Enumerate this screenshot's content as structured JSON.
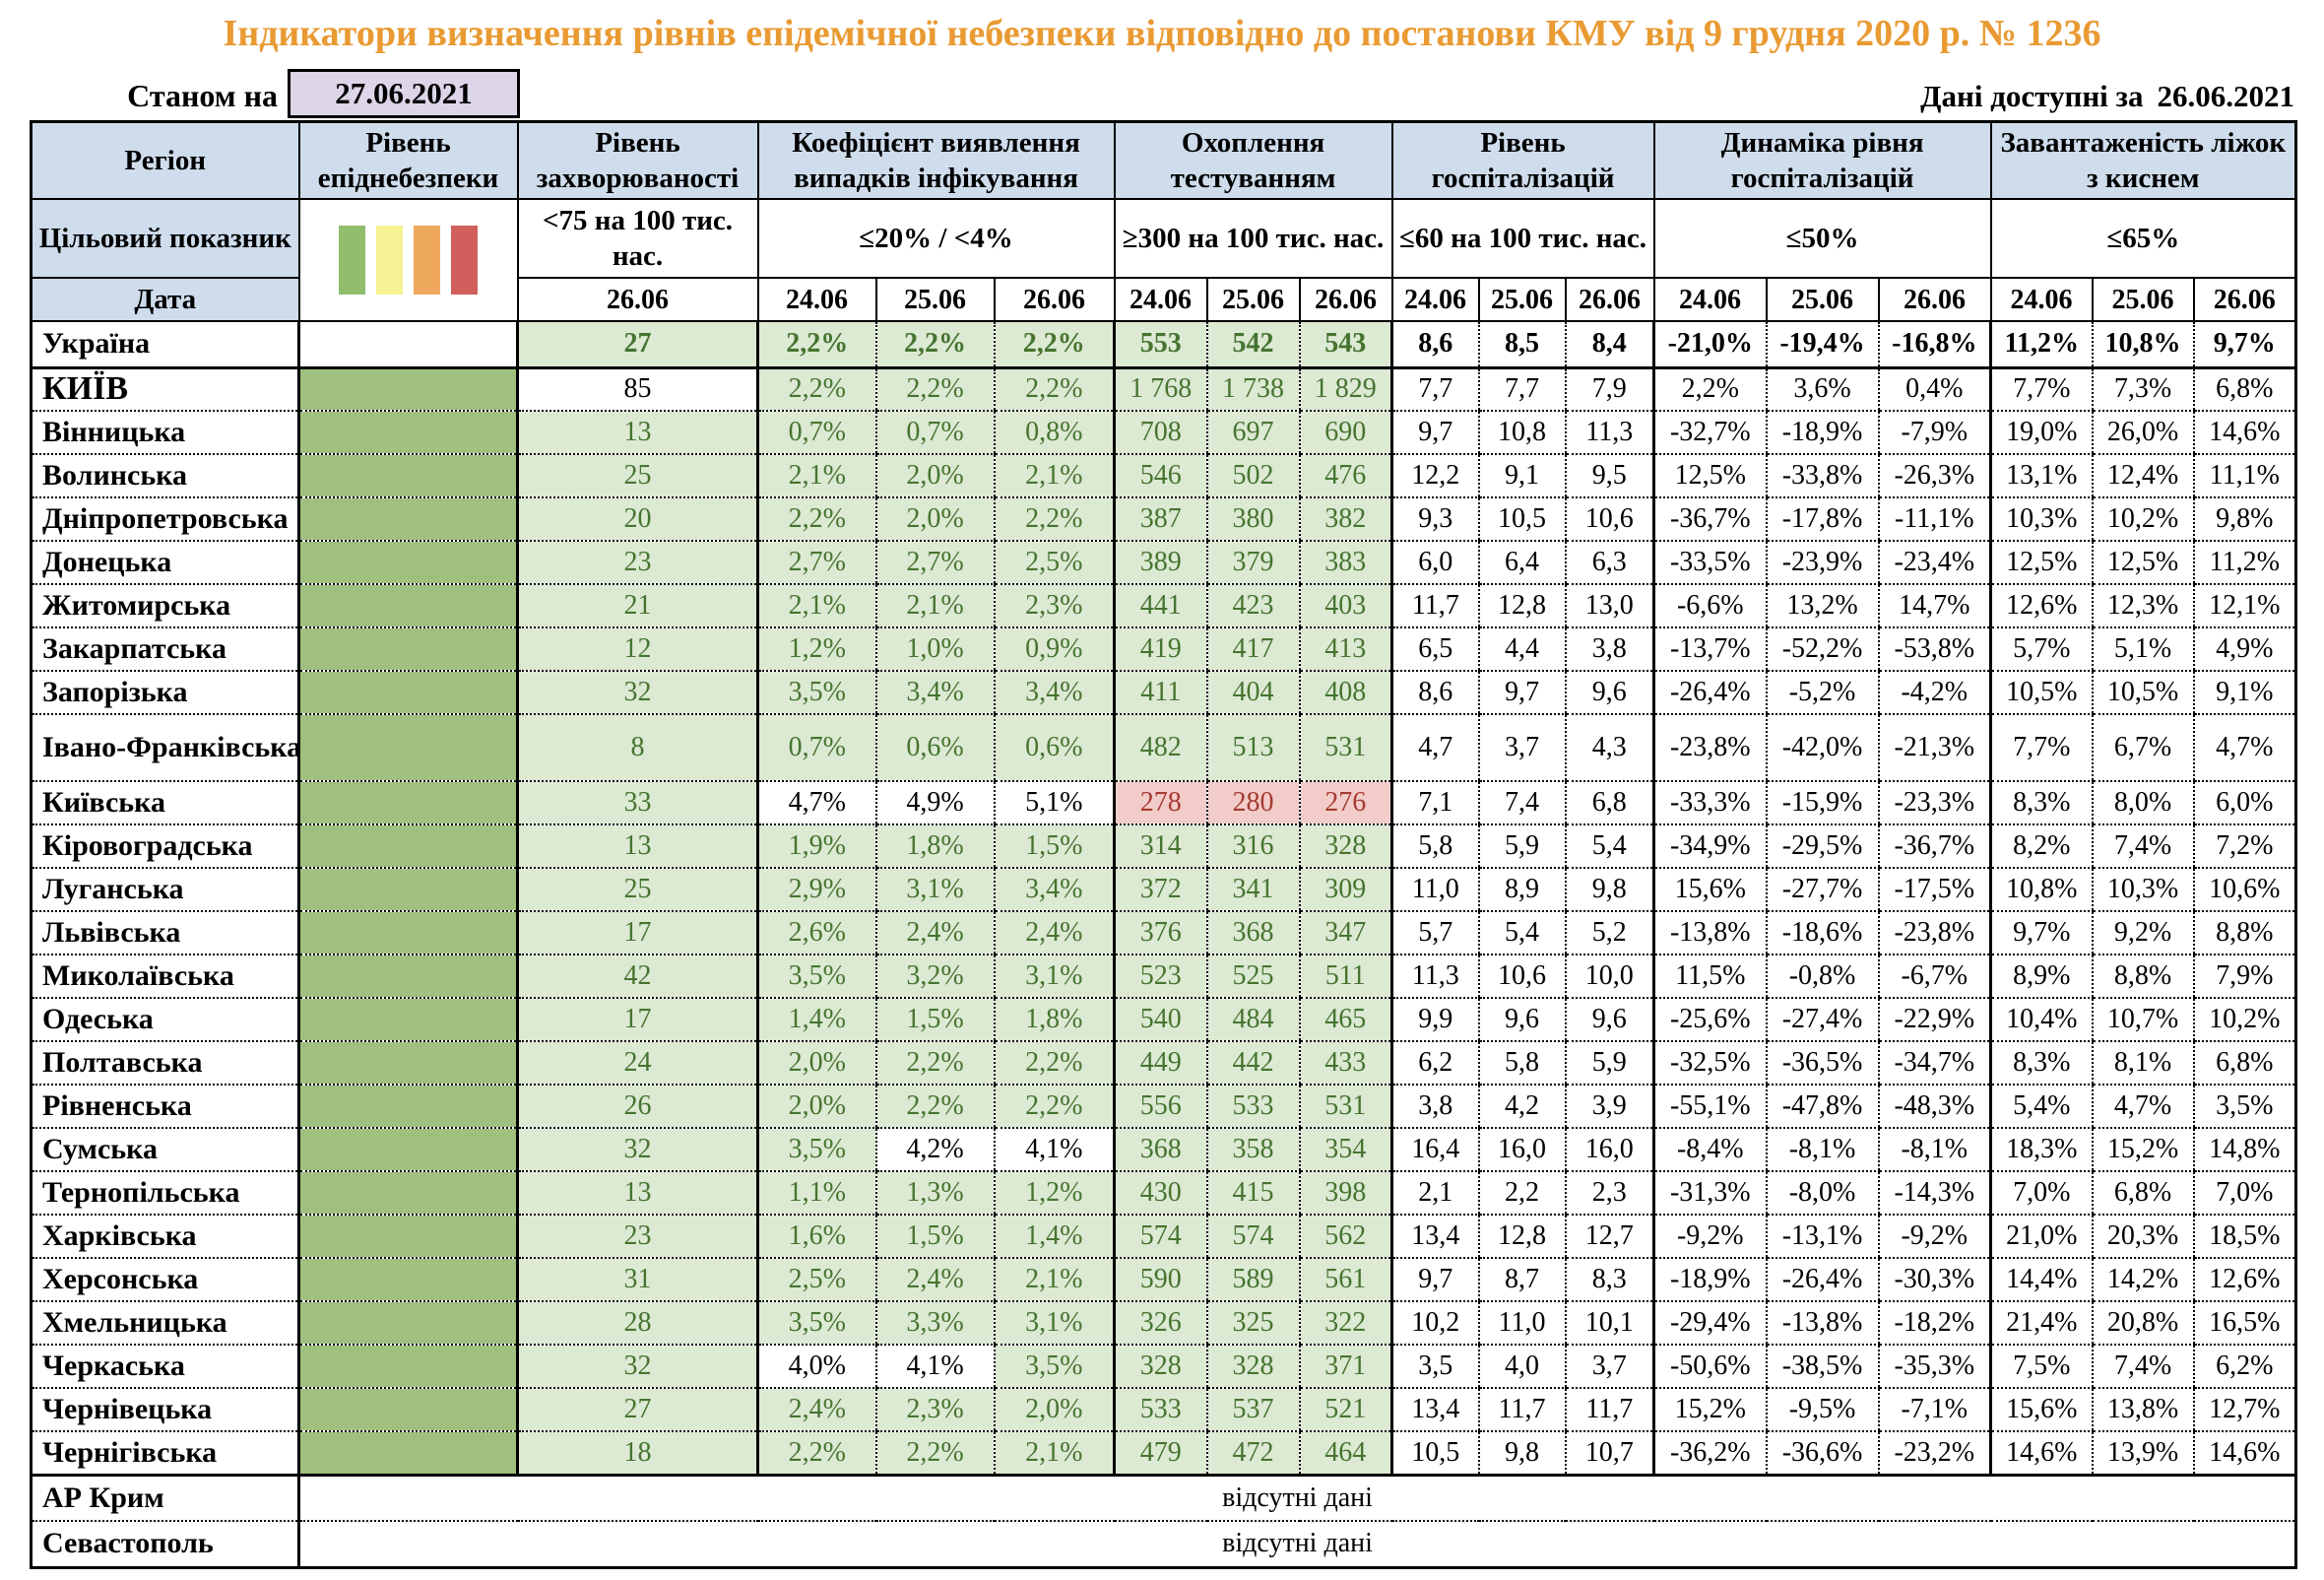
{
  "title": "Індикатори визначення рівнів епідемічної небезпеки відповідно до постанови КМУ від 9 грудня 2020 р. № 1236",
  "as_of": {
    "label": "Станом на",
    "date": "27.06.2021"
  },
  "available": {
    "label": "Дані доступні за",
    "date": "26.06.2021"
  },
  "legend_colors": [
    "#90BE6D",
    "#F6F293",
    "#EFA95F",
    "#D15F5B"
  ],
  "header": {
    "region": "Регіон",
    "target_label": "Цільовий показник",
    "date_label": "Дата",
    "groups": [
      {
        "title": "Рівень епіднебезпеки",
        "target": "",
        "dates": []
      },
      {
        "title": "Рівень захворюваності",
        "target": "<75 на 100 тис. нас.",
        "dates": [
          "26.06"
        ]
      },
      {
        "title": "Коефіцієнт виявлення випадків інфікування",
        "target": "≤20% / <4%",
        "dates": [
          "24.06",
          "25.06",
          "26.06"
        ]
      },
      {
        "title": "Охоплення тестуванням",
        "target": "≥300 на 100 тис. нас.",
        "dates": [
          "24.06",
          "25.06",
          "26.06"
        ]
      },
      {
        "title": "Рівень госпіталізацій",
        "target": "≤60 на 100 тис. нас.",
        "dates": [
          "24.06",
          "25.06",
          "26.06"
        ]
      },
      {
        "title": "Динаміка рівня госпіталізацій",
        "target": "≤50%",
        "dates": [
          "24.06",
          "25.06",
          "26.06"
        ]
      },
      {
        "title": "Завантаженість ліжок з киснем",
        "target": "≤65%",
        "dates": [
          "24.06",
          "25.06",
          "26.06"
        ]
      }
    ]
  },
  "rows": [
    {
      "name": "Україна",
      "total": true,
      "danger": "",
      "zah": [
        "27",
        "g"
      ],
      "koef": [
        [
          "2,2%",
          "g"
        ],
        [
          "2,2%",
          "g"
        ],
        [
          "2,2%",
          "g"
        ]
      ],
      "test": [
        [
          "553",
          "g"
        ],
        [
          "542",
          "g"
        ],
        [
          "543",
          "g"
        ]
      ],
      "gosp": [
        "8,6",
        "8,5",
        "8,4"
      ],
      "dyn": [
        "-21,0%",
        "-19,4%",
        "-16,8%"
      ],
      "lizhka": [
        "11,2%",
        "10,8%",
        "9,7%"
      ]
    },
    {
      "name": "КИЇВ",
      "caps": true,
      "danger": "g",
      "zah": [
        "85",
        "w"
      ],
      "koef": [
        [
          "2,2%",
          "g"
        ],
        [
          "2,2%",
          "g"
        ],
        [
          "2,2%",
          "g"
        ]
      ],
      "test": [
        [
          "1 768",
          "g"
        ],
        [
          "1 738",
          "g"
        ],
        [
          "1 829",
          "g"
        ]
      ],
      "gosp": [
        "7,7",
        "7,7",
        "7,9"
      ],
      "dyn": [
        "2,2%",
        "3,6%",
        "0,4%"
      ],
      "lizhka": [
        "7,7%",
        "7,3%",
        "6,8%"
      ]
    },
    {
      "name": "Вінницька",
      "danger": "g",
      "zah": [
        "13",
        "g"
      ],
      "koef": [
        [
          "0,7%",
          "g"
        ],
        [
          "0,7%",
          "g"
        ],
        [
          "0,8%",
          "g"
        ]
      ],
      "test": [
        [
          "708",
          "g"
        ],
        [
          "697",
          "g"
        ],
        [
          "690",
          "g"
        ]
      ],
      "gosp": [
        "9,7",
        "10,8",
        "11,3"
      ],
      "dyn": [
        "-32,7%",
        "-18,9%",
        "-7,9%"
      ],
      "lizhka": [
        "19,0%",
        "26,0%",
        "14,6%"
      ]
    },
    {
      "name": "Волинська",
      "danger": "g",
      "zah": [
        "25",
        "g"
      ],
      "koef": [
        [
          "2,1%",
          "g"
        ],
        [
          "2,0%",
          "g"
        ],
        [
          "2,1%",
          "g"
        ]
      ],
      "test": [
        [
          "546",
          "g"
        ],
        [
          "502",
          "g"
        ],
        [
          "476",
          "g"
        ]
      ],
      "gosp": [
        "12,2",
        "9,1",
        "9,5"
      ],
      "dyn": [
        "12,5%",
        "-33,8%",
        "-26,3%"
      ],
      "lizhka": [
        "13,1%",
        "12,4%",
        "11,1%"
      ]
    },
    {
      "name": "Дніпропетровська",
      "danger": "g",
      "zah": [
        "20",
        "g"
      ],
      "koef": [
        [
          "2,2%",
          "g"
        ],
        [
          "2,0%",
          "g"
        ],
        [
          "2,2%",
          "g"
        ]
      ],
      "test": [
        [
          "387",
          "g"
        ],
        [
          "380",
          "g"
        ],
        [
          "382",
          "g"
        ]
      ],
      "gosp": [
        "9,3",
        "10,5",
        "10,6"
      ],
      "dyn": [
        "-36,7%",
        "-17,8%",
        "-11,1%"
      ],
      "lizhka": [
        "10,3%",
        "10,2%",
        "9,8%"
      ]
    },
    {
      "name": "Донецька",
      "danger": "g",
      "zah": [
        "23",
        "g"
      ],
      "koef": [
        [
          "2,7%",
          "g"
        ],
        [
          "2,7%",
          "g"
        ],
        [
          "2,5%",
          "g"
        ]
      ],
      "test": [
        [
          "389",
          "g"
        ],
        [
          "379",
          "g"
        ],
        [
          "383",
          "g"
        ]
      ],
      "gosp": [
        "6,0",
        "6,4",
        "6,3"
      ],
      "dyn": [
        "-33,5%",
        "-23,9%",
        "-23,4%"
      ],
      "lizhka": [
        "12,5%",
        "12,5%",
        "11,2%"
      ]
    },
    {
      "name": "Житомирська",
      "danger": "g",
      "zah": [
        "21",
        "g"
      ],
      "koef": [
        [
          "2,1%",
          "g"
        ],
        [
          "2,1%",
          "g"
        ],
        [
          "2,3%",
          "g"
        ]
      ],
      "test": [
        [
          "441",
          "g"
        ],
        [
          "423",
          "g"
        ],
        [
          "403",
          "g"
        ]
      ],
      "gosp": [
        "11,7",
        "12,8",
        "13,0"
      ],
      "dyn": [
        "-6,6%",
        "13,2%",
        "14,7%"
      ],
      "lizhka": [
        "12,6%",
        "12,3%",
        "12,1%"
      ]
    },
    {
      "name": "Закарпатська",
      "danger": "g",
      "zah": [
        "12",
        "g"
      ],
      "koef": [
        [
          "1,2%",
          "g"
        ],
        [
          "1,0%",
          "g"
        ],
        [
          "0,9%",
          "g"
        ]
      ],
      "test": [
        [
          "419",
          "g"
        ],
        [
          "417",
          "g"
        ],
        [
          "413",
          "g"
        ]
      ],
      "gosp": [
        "6,5",
        "4,4",
        "3,8"
      ],
      "dyn": [
        "-13,7%",
        "-52,2%",
        "-53,8%"
      ],
      "lizhka": [
        "5,7%",
        "5,1%",
        "4,9%"
      ]
    },
    {
      "name": "Запорізька",
      "danger": "g",
      "zah": [
        "32",
        "g"
      ],
      "koef": [
        [
          "3,5%",
          "g"
        ],
        [
          "3,4%",
          "g"
        ],
        [
          "3,4%",
          "g"
        ]
      ],
      "test": [
        [
          "411",
          "g"
        ],
        [
          "404",
          "g"
        ],
        [
          "408",
          "g"
        ]
      ],
      "gosp": [
        "8,6",
        "9,7",
        "9,6"
      ],
      "dyn": [
        "-26,4%",
        "-5,2%",
        "-4,2%"
      ],
      "lizhka": [
        "10,5%",
        "10,5%",
        "9,1%"
      ]
    },
    {
      "name": "Івано-Франківська",
      "tall": true,
      "danger": "g",
      "zah": [
        "8",
        "g"
      ],
      "koef": [
        [
          "0,7%",
          "g"
        ],
        [
          "0,6%",
          "g"
        ],
        [
          "0,6%",
          "g"
        ]
      ],
      "test": [
        [
          "482",
          "g"
        ],
        [
          "513",
          "g"
        ],
        [
          "531",
          "g"
        ]
      ],
      "gosp": [
        "4,7",
        "3,7",
        "4,3"
      ],
      "dyn": [
        "-23,8%",
        "-42,0%",
        "-21,3%"
      ],
      "lizhka": [
        "7,7%",
        "6,7%",
        "4,7%"
      ]
    },
    {
      "name": "Київська",
      "danger": "g",
      "zah": [
        "33",
        "g"
      ],
      "koef": [
        [
          "4,7%",
          "w"
        ],
        [
          "4,9%",
          "w"
        ],
        [
          "5,1%",
          "w"
        ]
      ],
      "test": [
        [
          "278",
          "p"
        ],
        [
          "280",
          "p"
        ],
        [
          "276",
          "p"
        ]
      ],
      "gosp": [
        "7,1",
        "7,4",
        "6,8"
      ],
      "dyn": [
        "-33,3%",
        "-15,9%",
        "-23,3%"
      ],
      "lizhka": [
        "8,3%",
        "8,0%",
        "6,0%"
      ]
    },
    {
      "name": "Кіровоградська",
      "danger": "g",
      "zah": [
        "13",
        "g"
      ],
      "koef": [
        [
          "1,9%",
          "g"
        ],
        [
          "1,8%",
          "g"
        ],
        [
          "1,5%",
          "g"
        ]
      ],
      "test": [
        [
          "314",
          "g"
        ],
        [
          "316",
          "g"
        ],
        [
          "328",
          "g"
        ]
      ],
      "gosp": [
        "5,8",
        "5,9",
        "5,4"
      ],
      "dyn": [
        "-34,9%",
        "-29,5%",
        "-36,7%"
      ],
      "lizhka": [
        "8,2%",
        "7,4%",
        "7,2%"
      ]
    },
    {
      "name": "Луганська",
      "danger": "g",
      "zah": [
        "25",
        "g"
      ],
      "koef": [
        [
          "2,9%",
          "g"
        ],
        [
          "3,1%",
          "g"
        ],
        [
          "3,4%",
          "g"
        ]
      ],
      "test": [
        [
          "372",
          "g"
        ],
        [
          "341",
          "g"
        ],
        [
          "309",
          "g"
        ]
      ],
      "gosp": [
        "11,0",
        "8,9",
        "9,8"
      ],
      "dyn": [
        "15,6%",
        "-27,7%",
        "-17,5%"
      ],
      "lizhka": [
        "10,8%",
        "10,3%",
        "10,6%"
      ]
    },
    {
      "name": "Львівська",
      "danger": "g",
      "zah": [
        "17",
        "g"
      ],
      "koef": [
        [
          "2,6%",
          "g"
        ],
        [
          "2,4%",
          "g"
        ],
        [
          "2,4%",
          "g"
        ]
      ],
      "test": [
        [
          "376",
          "g"
        ],
        [
          "368",
          "g"
        ],
        [
          "347",
          "g"
        ]
      ],
      "gosp": [
        "5,7",
        "5,4",
        "5,2"
      ],
      "dyn": [
        "-13,8%",
        "-18,6%",
        "-23,8%"
      ],
      "lizhka": [
        "9,7%",
        "9,2%",
        "8,8%"
      ]
    },
    {
      "name": "Миколаївська",
      "danger": "g",
      "zah": [
        "42",
        "g"
      ],
      "koef": [
        [
          "3,5%",
          "g"
        ],
        [
          "3,2%",
          "g"
        ],
        [
          "3,1%",
          "g"
        ]
      ],
      "test": [
        [
          "523",
          "g"
        ],
        [
          "525",
          "g"
        ],
        [
          "511",
          "g"
        ]
      ],
      "gosp": [
        "11,3",
        "10,6",
        "10,0"
      ],
      "dyn": [
        "11,5%",
        "-0,8%",
        "-6,7%"
      ],
      "lizhka": [
        "8,9%",
        "8,8%",
        "7,9%"
      ]
    },
    {
      "name": "Одеська",
      "danger": "g",
      "zah": [
        "17",
        "g"
      ],
      "koef": [
        [
          "1,4%",
          "g"
        ],
        [
          "1,5%",
          "g"
        ],
        [
          "1,8%",
          "g"
        ]
      ],
      "test": [
        [
          "540",
          "g"
        ],
        [
          "484",
          "g"
        ],
        [
          "465",
          "g"
        ]
      ],
      "gosp": [
        "9,9",
        "9,6",
        "9,6"
      ],
      "dyn": [
        "-25,6%",
        "-27,4%",
        "-22,9%"
      ],
      "lizhka": [
        "10,4%",
        "10,7%",
        "10,2%"
      ]
    },
    {
      "name": "Полтавська",
      "danger": "g",
      "zah": [
        "24",
        "g"
      ],
      "koef": [
        [
          "2,0%",
          "g"
        ],
        [
          "2,2%",
          "g"
        ],
        [
          "2,2%",
          "g"
        ]
      ],
      "test": [
        [
          "449",
          "g"
        ],
        [
          "442",
          "g"
        ],
        [
          "433",
          "g"
        ]
      ],
      "gosp": [
        "6,2",
        "5,8",
        "5,9"
      ],
      "dyn": [
        "-32,5%",
        "-36,5%",
        "-34,7%"
      ],
      "lizhka": [
        "8,3%",
        "8,1%",
        "6,8%"
      ]
    },
    {
      "name": "Рівненська",
      "danger": "g",
      "zah": [
        "26",
        "g"
      ],
      "koef": [
        [
          "2,0%",
          "g"
        ],
        [
          "2,2%",
          "g"
        ],
        [
          "2,2%",
          "g"
        ]
      ],
      "test": [
        [
          "556",
          "g"
        ],
        [
          "533",
          "g"
        ],
        [
          "531",
          "g"
        ]
      ],
      "gosp": [
        "3,8",
        "4,2",
        "3,9"
      ],
      "dyn": [
        "-55,1%",
        "-47,8%",
        "-48,3%"
      ],
      "lizhka": [
        "5,4%",
        "4,7%",
        "3,5%"
      ]
    },
    {
      "name": "Сумська",
      "danger": "g",
      "zah": [
        "32",
        "g"
      ],
      "koef": [
        [
          "3,5%",
          "g"
        ],
        [
          "4,2%",
          "w"
        ],
        [
          "4,1%",
          "w"
        ]
      ],
      "test": [
        [
          "368",
          "g"
        ],
        [
          "358",
          "g"
        ],
        [
          "354",
          "g"
        ]
      ],
      "gosp": [
        "16,4",
        "16,0",
        "16,0"
      ],
      "dyn": [
        "-8,4%",
        "-8,1%",
        "-8,1%"
      ],
      "lizhka": [
        "18,3%",
        "15,2%",
        "14,8%"
      ]
    },
    {
      "name": "Тернопільська",
      "danger": "g",
      "zah": [
        "13",
        "g"
      ],
      "koef": [
        [
          "1,1%",
          "g"
        ],
        [
          "1,3%",
          "g"
        ],
        [
          "1,2%",
          "g"
        ]
      ],
      "test": [
        [
          "430",
          "g"
        ],
        [
          "415",
          "g"
        ],
        [
          "398",
          "g"
        ]
      ],
      "gosp": [
        "2,1",
        "2,2",
        "2,3"
      ],
      "dyn": [
        "-31,3%",
        "-8,0%",
        "-14,3%"
      ],
      "lizhka": [
        "7,0%",
        "6,8%",
        "7,0%"
      ]
    },
    {
      "name": "Харківська",
      "danger": "g",
      "zah": [
        "23",
        "g"
      ],
      "koef": [
        [
          "1,6%",
          "g"
        ],
        [
          "1,5%",
          "g"
        ],
        [
          "1,4%",
          "g"
        ]
      ],
      "test": [
        [
          "574",
          "g"
        ],
        [
          "574",
          "g"
        ],
        [
          "562",
          "g"
        ]
      ],
      "gosp": [
        "13,4",
        "12,8",
        "12,7"
      ],
      "dyn": [
        "-9,2%",
        "-13,1%",
        "-9,2%"
      ],
      "lizhka": [
        "21,0%",
        "20,3%",
        "18,5%"
      ]
    },
    {
      "name": "Херсонська",
      "danger": "g",
      "zah": [
        "31",
        "g"
      ],
      "koef": [
        [
          "2,5%",
          "g"
        ],
        [
          "2,4%",
          "g"
        ],
        [
          "2,1%",
          "g"
        ]
      ],
      "test": [
        [
          "590",
          "g"
        ],
        [
          "589",
          "g"
        ],
        [
          "561",
          "g"
        ]
      ],
      "gosp": [
        "9,7",
        "8,7",
        "8,3"
      ],
      "dyn": [
        "-18,9%",
        "-26,4%",
        "-30,3%"
      ],
      "lizhka": [
        "14,4%",
        "14,2%",
        "12,6%"
      ]
    },
    {
      "name": "Хмельницька",
      "danger": "g",
      "zah": [
        "28",
        "g"
      ],
      "koef": [
        [
          "3,5%",
          "g"
        ],
        [
          "3,3%",
          "g"
        ],
        [
          "3,1%",
          "g"
        ]
      ],
      "test": [
        [
          "326",
          "g"
        ],
        [
          "325",
          "g"
        ],
        [
          "322",
          "g"
        ]
      ],
      "gosp": [
        "10,2",
        "11,0",
        "10,1"
      ],
      "dyn": [
        "-29,4%",
        "-13,8%",
        "-18,2%"
      ],
      "lizhka": [
        "21,4%",
        "20,8%",
        "16,5%"
      ]
    },
    {
      "name": "Черкаська",
      "danger": "g",
      "zah": [
        "32",
        "g"
      ],
      "koef": [
        [
          "4,0%",
          "w"
        ],
        [
          "4,1%",
          "w"
        ],
        [
          "3,5%",
          "g"
        ]
      ],
      "test": [
        [
          "328",
          "g"
        ],
        [
          "328",
          "g"
        ],
        [
          "371",
          "g"
        ]
      ],
      "gosp": [
        "3,5",
        "4,0",
        "3,7"
      ],
      "dyn": [
        "-50,6%",
        "-38,5%",
        "-35,3%"
      ],
      "lizhka": [
        "7,5%",
        "7,4%",
        "6,2%"
      ]
    },
    {
      "name": "Чернівецька",
      "danger": "g",
      "zah": [
        "27",
        "g"
      ],
      "koef": [
        [
          "2,4%",
          "g"
        ],
        [
          "2,3%",
          "g"
        ],
        [
          "2,0%",
          "g"
        ]
      ],
      "test": [
        [
          "533",
          "g"
        ],
        [
          "537",
          "g"
        ],
        [
          "521",
          "g"
        ]
      ],
      "gosp": [
        "13,4",
        "11,7",
        "11,7"
      ],
      "dyn": [
        "15,2%",
        "-9,5%",
        "-7,1%"
      ],
      "lizhka": [
        "15,6%",
        "13,8%",
        "12,7%"
      ]
    },
    {
      "name": "Чернігівська",
      "danger": "g",
      "zah": [
        "18",
        "g"
      ],
      "koef": [
        [
          "2,2%",
          "g"
        ],
        [
          "2,2%",
          "g"
        ],
        [
          "2,1%",
          "g"
        ]
      ],
      "test": [
        [
          "479",
          "g"
        ],
        [
          "472",
          "g"
        ],
        [
          "464",
          "g"
        ]
      ],
      "gosp": [
        "10,5",
        "9,8",
        "10,7"
      ],
      "dyn": [
        "-36,2%",
        "-36,6%",
        "-23,2%"
      ],
      "lizhka": [
        "14,6%",
        "13,9%",
        "14,6%"
      ]
    }
  ],
  "no_data": [
    {
      "name": "АР Крим",
      "text": "відсутні дані"
    },
    {
      "name": "Севастополь",
      "text": "відсутні дані"
    }
  ]
}
